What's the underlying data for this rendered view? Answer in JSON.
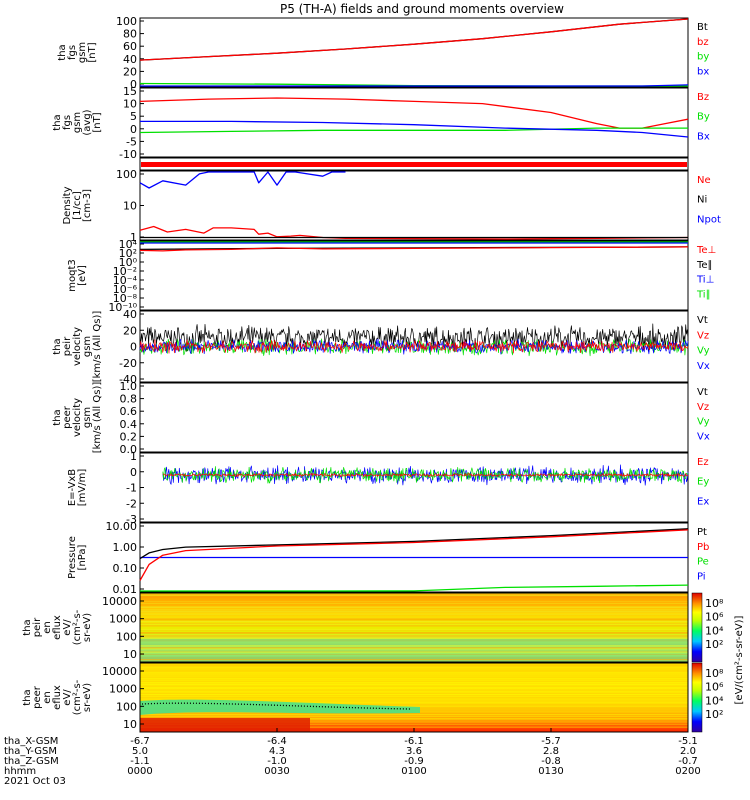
{
  "title": "P5 (TH-A) fields and ground moments overview",
  "colors": {
    "black": "#000000",
    "red": "#ff0000",
    "green": "#00e000",
    "blue": "#0000ff"
  },
  "chart_data": [
    {
      "type": "line",
      "id": "p1",
      "ylabel": [
        "tha",
        "fgs",
        "gsm",
        "[nT]"
      ],
      "yticks": [
        "100",
        "80",
        "60",
        "40",
        "20",
        "0"
      ],
      "ylim": [
        0,
        100
      ],
      "legend": [
        {
          "name": "Bt",
          "color": "black"
        },
        {
          "name": "bz",
          "color": "red"
        },
        {
          "name": "by",
          "color": "green"
        },
        {
          "name": "bx",
          "color": "blue"
        }
      ],
      "series": [
        {
          "name": "Bt",
          "color": "black",
          "x": [
            0,
            15,
            30,
            45,
            60,
            75,
            90,
            105,
            120
          ],
          "y": [
            39,
            44,
            49,
            55,
            62,
            70,
            80,
            91,
            105
          ]
        },
        {
          "name": "bz",
          "color": "red",
          "x": [
            0,
            15,
            30,
            45,
            60,
            75,
            90,
            105,
            120
          ],
          "y": [
            39,
            44,
            49,
            55,
            62,
            70,
            80,
            91,
            105
          ]
        },
        {
          "name": "by",
          "color": "green",
          "x": [
            0,
            30,
            60,
            90,
            120
          ],
          "y": [
            5,
            4,
            2,
            0,
            -2
          ]
        },
        {
          "name": "bx",
          "color": "blue",
          "x": [
            0,
            60,
            90,
            110,
            120
          ],
          "y": [
            -1,
            -1,
            -1,
            0,
            3
          ]
        }
      ]
    },
    {
      "type": "line",
      "id": "p2",
      "ylabel": [
        "tha",
        "fgs",
        "gsm",
        "(avg)",
        "[nT]"
      ],
      "yticks": [
        "15",
        "10",
        "5",
        "0",
        "-5",
        "-10"
      ],
      "ylim": [
        -14,
        17
      ],
      "legend": [
        {
          "name": "Bz",
          "color": "red"
        },
        {
          "name": "By",
          "color": "green"
        },
        {
          "name": "Bx",
          "color": "blue"
        }
      ],
      "series": [
        {
          "name": "Bz",
          "color": "red",
          "x": [
            0,
            15,
            30,
            45,
            60,
            75,
            90,
            100,
            105,
            110,
            115,
            120
          ],
          "y": [
            11,
            12,
            12.5,
            12,
            11,
            10,
            6,
            1,
            -1,
            -1,
            1,
            3
          ]
        },
        {
          "name": "By",
          "color": "green",
          "x": [
            0,
            20,
            40,
            60,
            80,
            100,
            110,
            120
          ],
          "y": [
            -3,
            -2.5,
            -2,
            -2,
            -2,
            -1,
            -1,
            -1
          ]
        },
        {
          "name": "Bx",
          "color": "blue",
          "x": [
            0,
            20,
            40,
            60,
            80,
            100,
            110,
            120
          ],
          "y": [
            2,
            2,
            1.5,
            0.5,
            -1,
            -2,
            -3,
            -5
          ]
        }
      ]
    },
    {
      "type": "line",
      "id": "p3",
      "log": true,
      "ylabel": [
        "Density",
        "[1/cc]",
        "[cm-3]"
      ],
      "yticks": [
        "100",
        "10",
        "1"
      ],
      "ylim": [
        0.7,
        150
      ],
      "legend": [
        {
          "name": "Ne",
          "color": "red"
        },
        {
          "name": "Ni",
          "color": "black"
        },
        {
          "name": "Npot",
          "color": "blue"
        }
      ],
      "series": [
        {
          "name": "Npot",
          "color": "blue",
          "x": [
            0,
            2,
            5,
            10,
            13,
            15,
            20,
            25,
            26,
            28,
            30,
            32,
            34,
            40,
            42,
            45
          ],
          "y": [
            60,
            40,
            70,
            50,
            120,
            150,
            150,
            150,
            60,
            150,
            50,
            150,
            150,
            100,
            150,
            150
          ]
        },
        {
          "name": "Ne",
          "color": "red",
          "x": [
            0,
            3,
            6,
            10,
            14,
            16,
            20,
            25,
            26,
            28,
            30,
            33,
            35,
            40,
            45,
            60,
            80,
            100,
            120
          ],
          "y": [
            1.5,
            2,
            1.3,
            1.6,
            1.2,
            1.8,
            1.8,
            1.6,
            1.1,
            1.2,
            0.9,
            0.95,
            1.0,
            0.85,
            0.8,
            0.78,
            0.75,
            0.8,
            0.85
          ]
        },
        {
          "name": "Ni",
          "color": "black",
          "x": [
            0,
            40,
            80,
            120
          ],
          "y": [
            0.85,
            0.85,
            0.85,
            0.85
          ]
        }
      ]
    },
    {
      "type": "line",
      "id": "p4",
      "log": true,
      "ylabel": [
        "moqt3",
        "[eV]"
      ],
      "yticks": [
        "10⁴",
        "10²",
        "10⁰",
        "10⁻²",
        "10⁻⁴",
        "10⁻⁶",
        "10⁻⁸",
        "10⁻¹⁰"
      ],
      "ylim": [
        -10,
        4
      ],
      "legend": [
        {
          "name": "Te⊥",
          "color": "red"
        },
        {
          "name": "Te∥",
          "color": "black"
        },
        {
          "name": "Ti⊥",
          "color": "blue"
        },
        {
          "name": "Ti∥",
          "color": "green"
        }
      ],
      "series": [
        {
          "name": "Ti",
          "color": "green",
          "x": [
            0,
            120
          ],
          "y": [
            3.8,
            3.8
          ]
        },
        {
          "name": "Ti⊥",
          "color": "blue",
          "x": [
            0,
            120
          ],
          "y": [
            3.6,
            3.6
          ]
        },
        {
          "name": "Te∥",
          "color": "black",
          "x": [
            0,
            30,
            60,
            90,
            120
          ],
          "y": [
            2.3,
            2.5,
            2.6,
            2.7,
            2.8
          ]
        },
        {
          "name": "Te⊥",
          "color": "red",
          "x": [
            0,
            5,
            10,
            20,
            30,
            40,
            60,
            80,
            100,
            120
          ],
          "y": [
            2.1,
            2.0,
            2.2,
            2.3,
            2.6,
            2.4,
            2.5,
            2.6,
            2.7,
            2.8
          ]
        }
      ]
    },
    {
      "type": "line",
      "id": "p5",
      "noisy": true,
      "ylabel": [
        "tha",
        "peir",
        "velocity",
        "gsm",
        "[km/s (All Qs)]"
      ],
      "yticks": [
        "40",
        "20",
        "0",
        "-20",
        "-40"
      ],
      "ylim": [
        -42,
        42
      ],
      "legend": [
        {
          "name": "Vt",
          "color": "black"
        },
        {
          "name": "Vz",
          "color": "red"
        },
        {
          "name": "Vy",
          "color": "green"
        },
        {
          "name": "Vx",
          "color": "blue"
        }
      ],
      "series": [
        {
          "name": "Vt",
          "color": "black",
          "base": 10,
          "amp": 14
        },
        {
          "name": "Vy",
          "color": "green",
          "base": -1,
          "amp": 9
        },
        {
          "name": "Vx",
          "color": "blue",
          "base": 0,
          "amp": 8
        },
        {
          "name": "Vz",
          "color": "red",
          "base": 0,
          "amp": 7
        }
      ]
    },
    {
      "type": "line",
      "id": "p6",
      "ylabel": [
        "tha",
        "peer",
        "velocity",
        "gsm",
        "[km/s (All Qs)]"
      ],
      "yticks": [
        "1.0",
        "0.8",
        "0.6",
        "0.4",
        "0.2",
        "0.0"
      ],
      "ylim": [
        0,
        1
      ],
      "legend": [
        {
          "name": "Vt",
          "color": "black"
        },
        {
          "name": "Vz",
          "color": "red"
        },
        {
          "name": "Vy",
          "color": "green"
        },
        {
          "name": "Vx",
          "color": "blue"
        }
      ],
      "series": []
    },
    {
      "type": "line",
      "id": "p7",
      "noisy": true,
      "start": 5,
      "ylabel": [
        "E=-VxB",
        "[mV/m]"
      ],
      "yticks": [
        "1",
        "0",
        "-1",
        "-2",
        "-3"
      ],
      "ylim": [
        -3.2,
        1.5
      ],
      "legend": [
        {
          "name": "Ez",
          "color": "red"
        },
        {
          "name": "Ey",
          "color": "green"
        },
        {
          "name": "Ex",
          "color": "blue"
        }
      ],
      "series": [
        {
          "name": "Ex",
          "color": "blue",
          "base": 0,
          "amp": 0.6
        },
        {
          "name": "Ey",
          "color": "green",
          "base": 0,
          "amp": 0.5
        },
        {
          "name": "Ez",
          "color": "red",
          "base": 0,
          "amp": 0.1
        }
      ]
    },
    {
      "type": "line",
      "id": "p8",
      "log": true,
      "ylabel": [
        "Pressure",
        "[nPa]"
      ],
      "yticks": [
        "10.00",
        "1.00",
        "0.10",
        "0.01"
      ],
      "ylim": [
        -2,
        1
      ],
      "legend": [
        {
          "name": "Pt",
          "color": "black"
        },
        {
          "name": "Pb",
          "color": "red"
        },
        {
          "name": "Pe",
          "color": "green"
        },
        {
          "name": "Pi",
          "color": "blue"
        }
      ],
      "series": [
        {
          "name": "Pi",
          "color": "blue",
          "x": [
            0,
            1,
            120
          ],
          "y": [
            -0.5,
            -0.5,
            -0.5
          ]
        },
        {
          "name": "Pt",
          "color": "black",
          "x": [
            0,
            2,
            5,
            10,
            30,
            60,
            90,
            120
          ],
          "y": [
            -0.55,
            -0.3,
            -0.15,
            -0.05,
            0.05,
            0.2,
            0.45,
            0.75
          ]
        },
        {
          "name": "Pb",
          "color": "red",
          "x": [
            0,
            2,
            5,
            10,
            30,
            60,
            90,
            120
          ],
          "y": [
            -1.5,
            -0.8,
            -0.4,
            -0.2,
            0.0,
            0.15,
            0.4,
            0.7
          ]
        },
        {
          "name": "Pe",
          "color": "green",
          "x": [
            0,
            40,
            60,
            80,
            100,
            120
          ],
          "y": [
            -2,
            -2,
            -1.95,
            -1.8,
            -1.75,
            -1.7
          ]
        }
      ]
    },
    {
      "type": "heatmap",
      "id": "p9",
      "ylabel": [
        "tha",
        "peir",
        "en",
        "eflux",
        "eV/",
        "(cm²-s-",
        "sr-eV)"
      ],
      "yticks": [
        "10000",
        "1000",
        "100",
        "10"
      ],
      "colorbar": {
        "label": "[eV/(cm²-s-sr-eV)]",
        "ticks": [
          "10⁸",
          "10⁶",
          "10⁴",
          "10²"
        ]
      }
    },
    {
      "type": "heatmap",
      "id": "p10",
      "ylabel": [
        "tha",
        "peer",
        "en",
        "eflux",
        "eV/",
        "(cm²-s-",
        "sr-eV)"
      ],
      "yticks": [
        "10000",
        "1000",
        "100",
        "10"
      ],
      "colorbar": {
        "label": "[eV/(cm²-s-sr-eV)]",
        "ticks": [
          "10⁸",
          "10⁶",
          "10⁴",
          "10²"
        ]
      }
    }
  ],
  "xaxis": {
    "labels": [
      "tha_X-GSM",
      "tha_Y-GSM",
      "tha_Z-GSM",
      "hhmm",
      "2021 Oct 03"
    ],
    "cols": [
      [
        "-6.7",
        "5.0",
        "-1.1",
        "0000"
      ],
      [
        "-6.4",
        "4.3",
        "-1.0",
        "0030"
      ],
      [
        "-6.1",
        "3.6",
        "-0.9",
        "0100"
      ],
      [
        "-5.7",
        "2.8",
        "-0.8",
        "0130"
      ],
      [
        "-5.1",
        "2.0",
        "-0.7",
        "0200"
      ]
    ]
  }
}
